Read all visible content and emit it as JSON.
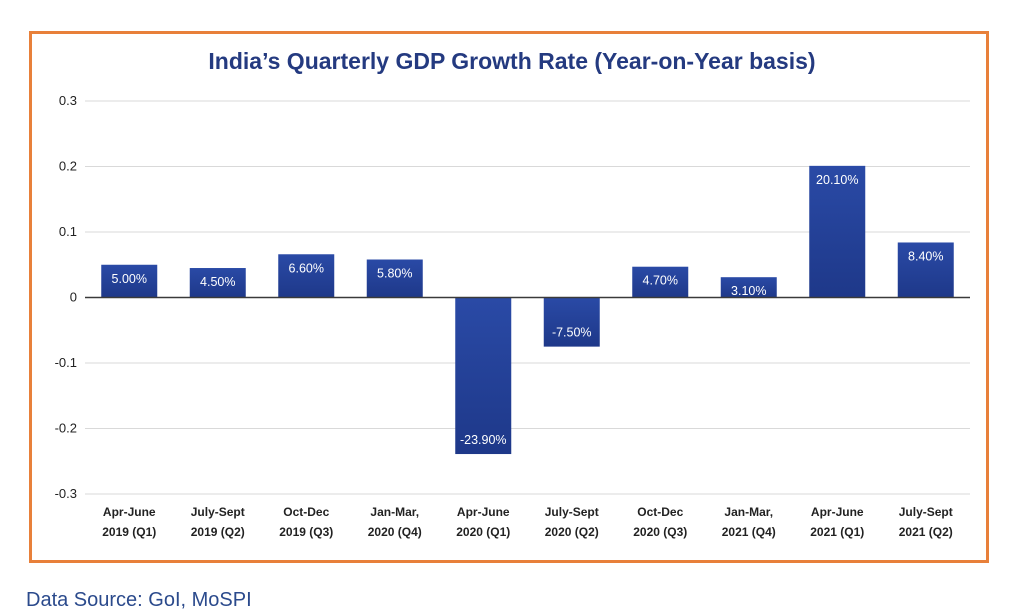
{
  "chart_data": {
    "type": "bar",
    "title": "India’s Quarterly GDP Growth Rate (Year-on-Year basis)",
    "categories": [
      [
        "Apr-June",
        "2019 (Q1)"
      ],
      [
        "July-Sept",
        "2019 (Q2)"
      ],
      [
        "Oct-Dec",
        "2019 (Q3)"
      ],
      [
        "Jan-Mar,",
        "2020 (Q4)"
      ],
      [
        "Apr-June",
        "2020 (Q1)"
      ],
      [
        "July-Sept",
        "2020 (Q2)"
      ],
      [
        "Oct-Dec",
        "2020 (Q3)"
      ],
      [
        "Jan-Mar,",
        "2021 (Q4)"
      ],
      [
        "Apr-June",
        "2021 (Q1)"
      ],
      [
        "July-Sept",
        "2021 (Q2)"
      ]
    ],
    "values": [
      0.05,
      0.045,
      0.066,
      0.058,
      -0.239,
      -0.075,
      0.047,
      0.031,
      0.201,
      0.084
    ],
    "data_labels": [
      "5.00%",
      "4.50%",
      "6.60%",
      "5.80%",
      "-23.90%",
      "-7.50%",
      "4.70%",
      "3.10%",
      "20.10%",
      "8.40%"
    ],
    "yticks": [
      "0.3",
      "0.2",
      "0.1",
      "0",
      "-0.1",
      "-0.2",
      "-0.3"
    ],
    "ytick_values": [
      0.3,
      0.2,
      0.1,
      0,
      -0.1,
      -0.2,
      -0.3
    ],
    "ylim": [
      -0.3,
      0.3
    ],
    "grid": true,
    "xlabel": "",
    "ylabel": "",
    "colors": {
      "bar": "#2746a0",
      "bar_dark": "#1c3483",
      "frame": "#e8803a",
      "title": "#243a80",
      "grid": "#d9d9d9"
    }
  },
  "source_note": "Data Source: GoI, MoSPI"
}
